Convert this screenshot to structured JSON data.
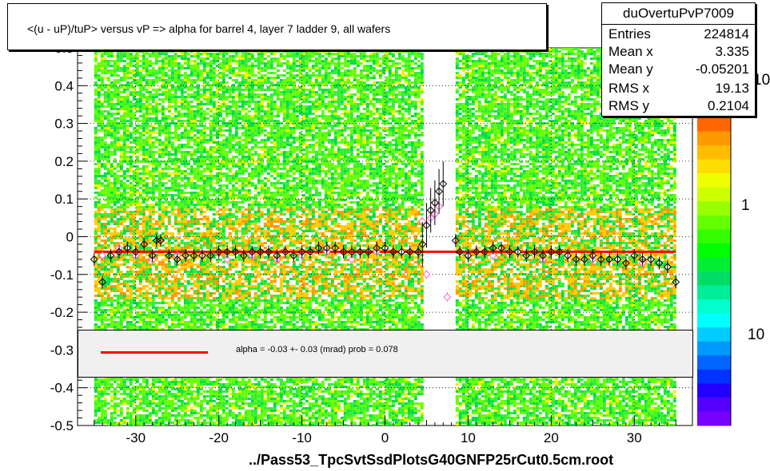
{
  "chart_data": {
    "type": "heatmap",
    "title": "<(u - uP)/tuP> versus   vP => alpha for barrel 4, layer 7 ladder 9, all wafers",
    "xlabel": "../Pass53_TpcSvtSsdPlotsG40GNFP25rCut0.5cm.root",
    "ylabel": "",
    "xlim": [
      -37,
      37
    ],
    "ylim": [
      -0.5,
      0.5
    ],
    "x_ticks": [
      "-30",
      "-20",
      "-10",
      "0",
      "10",
      "20",
      "30"
    ],
    "y_ticks": [
      "-0.5",
      "-0.4",
      "-0.3",
      "-0.2",
      "-0.1",
      "0",
      "0.1",
      "0.2",
      "0.3",
      "0.4",
      "0.5"
    ],
    "colorbar_labels": [
      "10",
      "1",
      "10"
    ],
    "colors": {
      "fit_line": "#ff0000",
      "points_black": "#000000",
      "points_pink": "#ff66cc"
    },
    "heatmap_x_ranges": [
      [
        -35,
        4.5
      ],
      [
        8.5,
        35
      ]
    ],
    "fit": {
      "y": -0.04,
      "x_from": -35,
      "x_to": 35
    },
    "profile_black": {
      "x": [
        -35,
        -34,
        -33,
        -32,
        -31,
        -30,
        -29,
        -28,
        -27.5,
        -27,
        -26,
        -25,
        -24,
        -23,
        -22,
        -21,
        -20,
        -19,
        -18,
        -17,
        -16,
        -15,
        -14,
        -13,
        -12,
        -11,
        -10,
        -9,
        -8,
        -7,
        -6,
        -5,
        -4,
        -3,
        -2,
        -1,
        0,
        1,
        2,
        3,
        4,
        4.5,
        5,
        5.5,
        6,
        6.5,
        7,
        8.5,
        9,
        10,
        11,
        12,
        13,
        14,
        15,
        16,
        17,
        18,
        19,
        20,
        21,
        22,
        23,
        24,
        25,
        26,
        27,
        28,
        29,
        30,
        31,
        32,
        33,
        34,
        35
      ],
      "y": [
        -0.06,
        -0.12,
        -0.05,
        -0.04,
        -0.03,
        -0.04,
        -0.02,
        -0.05,
        -0.01,
        -0.01,
        -0.05,
        -0.06,
        -0.05,
        -0.05,
        -0.05,
        -0.05,
        -0.04,
        -0.04,
        -0.04,
        -0.05,
        -0.04,
        -0.04,
        -0.04,
        -0.05,
        -0.04,
        -0.05,
        -0.04,
        -0.04,
        -0.03,
        -0.03,
        -0.03,
        -0.04,
        -0.04,
        -0.04,
        -0.04,
        -0.03,
        -0.03,
        -0.04,
        -0.04,
        -0.04,
        -0.04,
        -0.02,
        0.03,
        0.07,
        0.09,
        0.12,
        0.14,
        -0.01,
        -0.04,
        -0.05,
        -0.04,
        -0.04,
        -0.03,
        -0.03,
        -0.04,
        -0.04,
        -0.05,
        -0.04,
        -0.05,
        -0.04,
        -0.04,
        -0.05,
        -0.06,
        -0.06,
        -0.05,
        -0.06,
        -0.06,
        -0.06,
        -0.07,
        -0.05,
        -0.06,
        -0.06,
        -0.07,
        -0.08,
        -0.12
      ]
    },
    "profile_pink": {
      "x": [
        -34,
        -32,
        -30,
        -28,
        -25,
        -22,
        -19,
        -16,
        -13,
        -10,
        -7,
        -4,
        -1,
        2,
        4.5,
        5,
        5.5,
        6,
        6.5,
        7.5,
        10,
        13,
        16,
        19,
        22,
        25,
        28,
        31,
        34
      ],
      "y": [
        -0.05,
        -0.03,
        -0.05,
        -0.06,
        -0.05,
        -0.05,
        -0.06,
        -0.05,
        -0.06,
        -0.05,
        -0.04,
        -0.06,
        -0.04,
        -0.04,
        0.04,
        -0.1,
        0.05,
        0.06,
        0.08,
        -0.16,
        -0.05,
        -0.05,
        -0.04,
        -0.06,
        -0.05,
        -0.06,
        -0.06,
        -0.07,
        -0.08
      ]
    }
  },
  "stats": {
    "name": "duOvertuPvP7009",
    "rows": [
      {
        "label": "Entries",
        "value": "224814"
      },
      {
        "label": "Mean x",
        "value": "3.335"
      },
      {
        "label": "Mean y",
        "value": "-0.05201"
      },
      {
        "label": "RMS x",
        "value": "19.13"
      },
      {
        "label": "RMS y",
        "value": "0.2104"
      }
    ]
  },
  "fit_text": "alpha =   -0.03 +-  0.03 (mrad) prob = 0.078"
}
